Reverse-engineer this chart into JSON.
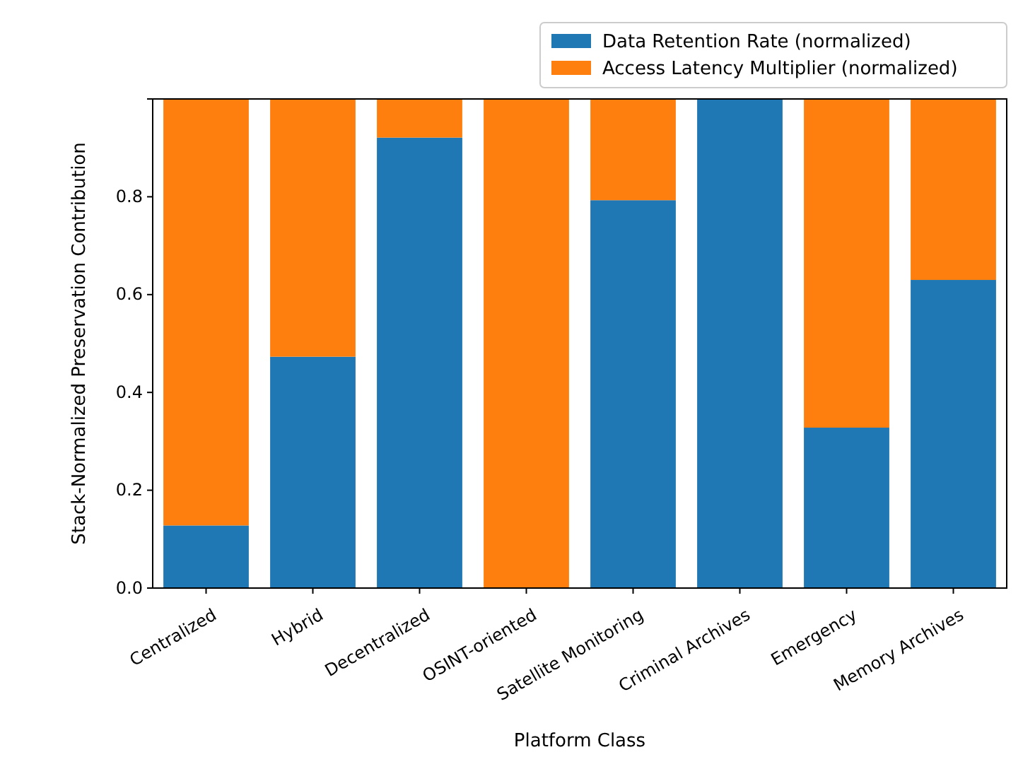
{
  "chart_data": {
    "type": "bar",
    "stacked": true,
    "xlabel": "Platform Class",
    "ylabel": "Stack-Normalized Preservation Contribution",
    "categories": [
      "Centralized",
      "Hybrid",
      "Decentralized",
      "OSINT-oriented",
      "Satellite Monitoring",
      "Criminal Archives",
      "Emergency",
      "Memory Archives"
    ],
    "series": [
      {
        "name": "Data Retention Rate (normalized)",
        "color": "#1f77b4",
        "values": [
          0.128,
          0.473,
          0.921,
          0,
          0.793,
          1,
          0.328,
          0.63
        ]
      },
      {
        "name": "Access Latency Multiplier (normalized)",
        "color": "#ff7f0e",
        "values": [
          0.872,
          0.527,
          0.079,
          1,
          0.207,
          0,
          0.672,
          0.37
        ]
      }
    ],
    "ylim": [
      0,
      1
    ],
    "yticks": [
      {
        "value": 0,
        "label": "0.0"
      },
      {
        "value": 0.2,
        "label": "0.2"
      },
      {
        "value": 0.4,
        "label": "0.4"
      },
      {
        "value": 0.6,
        "label": "0.6"
      },
      {
        "value": 0.8,
        "label": "0.8"
      },
      {
        "value": 1,
        "label": null
      }
    ],
    "grid": false,
    "legend": "top right"
  }
}
